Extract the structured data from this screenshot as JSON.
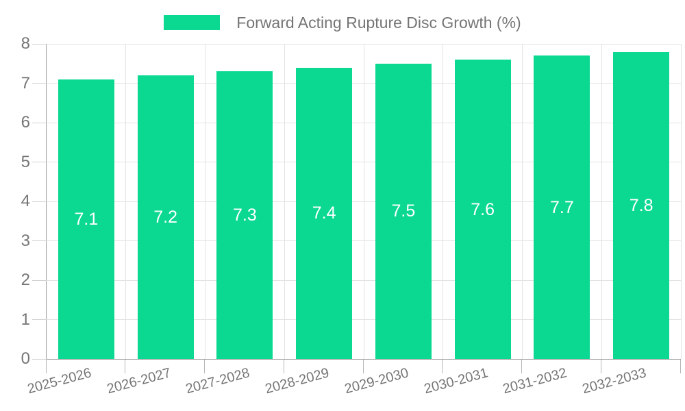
{
  "chart_data": {
    "type": "bar",
    "title": "Forward Acting Rupture Disc Growth (%)",
    "legend": [
      "Forward Acting Rupture Disc Growth (%)"
    ],
    "legend_position": "top-center",
    "categories": [
      "2025-2026",
      "2026-2027",
      "2027-2028",
      "2028-2029",
      "2029-2030",
      "2030-2031",
      "2031-2032",
      "2032-2033"
    ],
    "values": [
      7.1,
      7.2,
      7.3,
      7.4,
      7.5,
      7.6,
      7.7,
      7.8
    ],
    "bar_value_labels": [
      "7.1",
      "7.2",
      "7.3",
      "7.4",
      "7.5",
      "7.6",
      "7.7",
      "7.8"
    ],
    "xlabel": "",
    "ylabel": "",
    "ylim": [
      0,
      8
    ],
    "yticks": [
      0,
      1,
      2,
      3,
      4,
      5,
      6,
      7,
      8
    ],
    "grid": true,
    "x_label_rotation_deg": -15
  },
  "colors": {
    "bar": "#0bd992",
    "text": "#757575",
    "axis": "#9e9e9e",
    "grid": "#e3e3e3",
    "y_tick": "#d2d2d2",
    "x_tick": "#b5b5b5",
    "value_label": "#ffffff",
    "background": "#ffffff"
  }
}
